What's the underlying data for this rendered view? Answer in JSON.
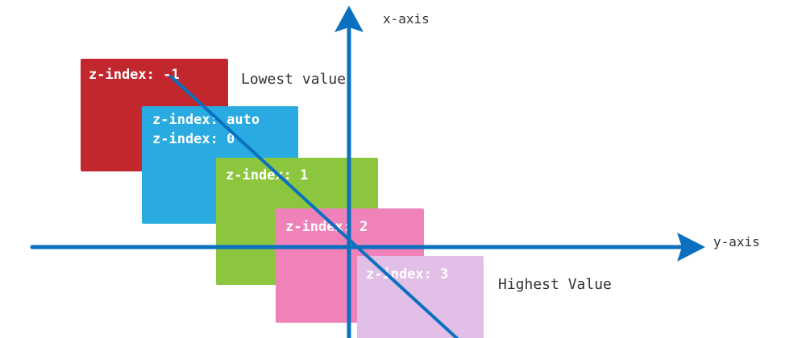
{
  "colors": {
    "axis": "#0a70bf",
    "neg1": "#c1272d",
    "auto": "#29abe2",
    "one": "#8cc63f",
    "two": "#ee82b9",
    "three": "#e1bfe6"
  },
  "boxes": {
    "neg1": {
      "line1": "z-index: -1"
    },
    "auto": {
      "line1": "z-index: auto",
      "line2": "z-index: 0"
    },
    "one": {
      "line1": "z-index: 1"
    },
    "two": {
      "line1": "z-index: 2"
    },
    "three": {
      "line1": "z-index: 3"
    }
  },
  "annotations": {
    "lowest": "Lowest value",
    "highest": "Highest Value"
  },
  "axes": {
    "x_label": "x-axis",
    "y_label": "y-axis"
  }
}
